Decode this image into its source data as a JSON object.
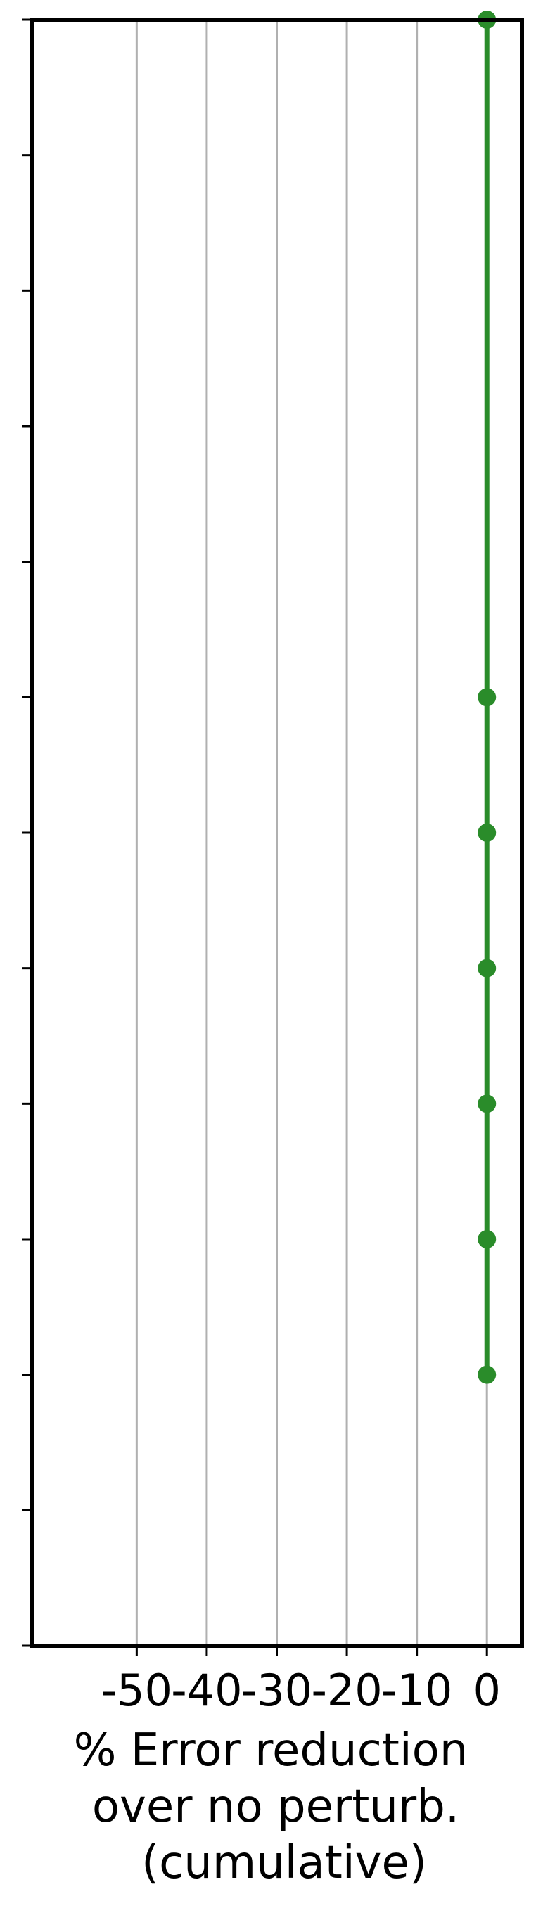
{
  "chart_data": {
    "type": "line",
    "orientation": "horizontal",
    "xlabel_lines": [
      "% Error reduction",
      "over no perturb.",
      "(cumulative)"
    ],
    "ylabel": "",
    "title": "",
    "xlim": [
      -65,
      5
    ],
    "ylim": [
      0,
      12
    ],
    "x_ticks": [
      -50,
      -40,
      -30,
      -20,
      -10,
      0
    ],
    "x_tick_labels": [
      "-50",
      "-40",
      "-30",
      "-20",
      "-10",
      "0"
    ],
    "y_ticks": [
      0,
      1,
      2,
      3,
      4,
      5,
      6,
      7,
      8,
      9,
      10,
      11,
      12
    ],
    "y_tick_labels": [],
    "grid": "vertical",
    "series": [
      {
        "x": [
          0,
          0,
          0,
          0,
          0,
          0,
          0
        ],
        "y": [
          0,
          5,
          6,
          7,
          8,
          9,
          10
        ],
        "color": "#2a8c2a"
      }
    ]
  },
  "colors": {
    "series": "#2a8c2a",
    "grid": "#b0b0b0",
    "frame": "#000000"
  }
}
